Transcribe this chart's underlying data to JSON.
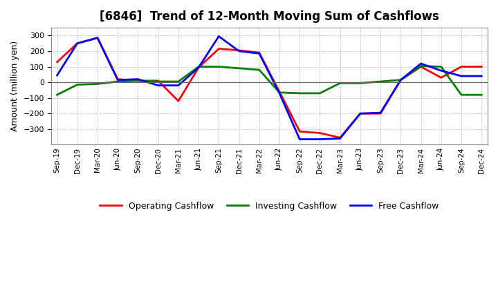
{
  "title": "[6846]  Trend of 12-Month Moving Sum of Cashflows",
  "ylabel": "Amount (million yen)",
  "x_labels": [
    "Sep-19",
    "Dec-19",
    "Mar-20",
    "Jun-20",
    "Sep-20",
    "Dec-20",
    "Mar-21",
    "Jun-21",
    "Sep-21",
    "Dec-21",
    "Mar-22",
    "Jun-22",
    "Sep-22",
    "Dec-22",
    "Mar-23",
    "Jun-23",
    "Sep-23",
    "Dec-23",
    "Mar-24",
    "Jun-24",
    "Sep-24",
    "Dec-24"
  ],
  "operating": [
    130,
    250,
    285,
    20,
    10,
    10,
    -120,
    95,
    215,
    205,
    190,
    -60,
    -315,
    -325,
    -355,
    -200,
    -200,
    15,
    100,
    30,
    100,
    100
  ],
  "investing": [
    -80,
    -15,
    -10,
    5,
    10,
    5,
    5,
    100,
    100,
    90,
    80,
    -65,
    -70,
    -70,
    -5,
    -5,
    5,
    15,
    105,
    100,
    -80,
    -80
  ],
  "free": [
    45,
    250,
    285,
    15,
    20,
    -20,
    -20,
    95,
    295,
    200,
    185,
    -70,
    -365,
    -365,
    -360,
    -200,
    -195,
    15,
    120,
    75,
    40,
    40
  ],
  "ylim": [
    -400,
    350
  ],
  "yticks": [
    -300,
    -200,
    -100,
    0,
    100,
    200,
    300
  ],
  "operating_color": "#FF0000",
  "investing_color": "#008000",
  "free_color": "#0000FF",
  "bg_color": "#FFFFFF",
  "grid_color": "#AAAAAA",
  "legend_labels": [
    "Operating Cashflow",
    "Investing Cashflow",
    "Free Cashflow"
  ]
}
